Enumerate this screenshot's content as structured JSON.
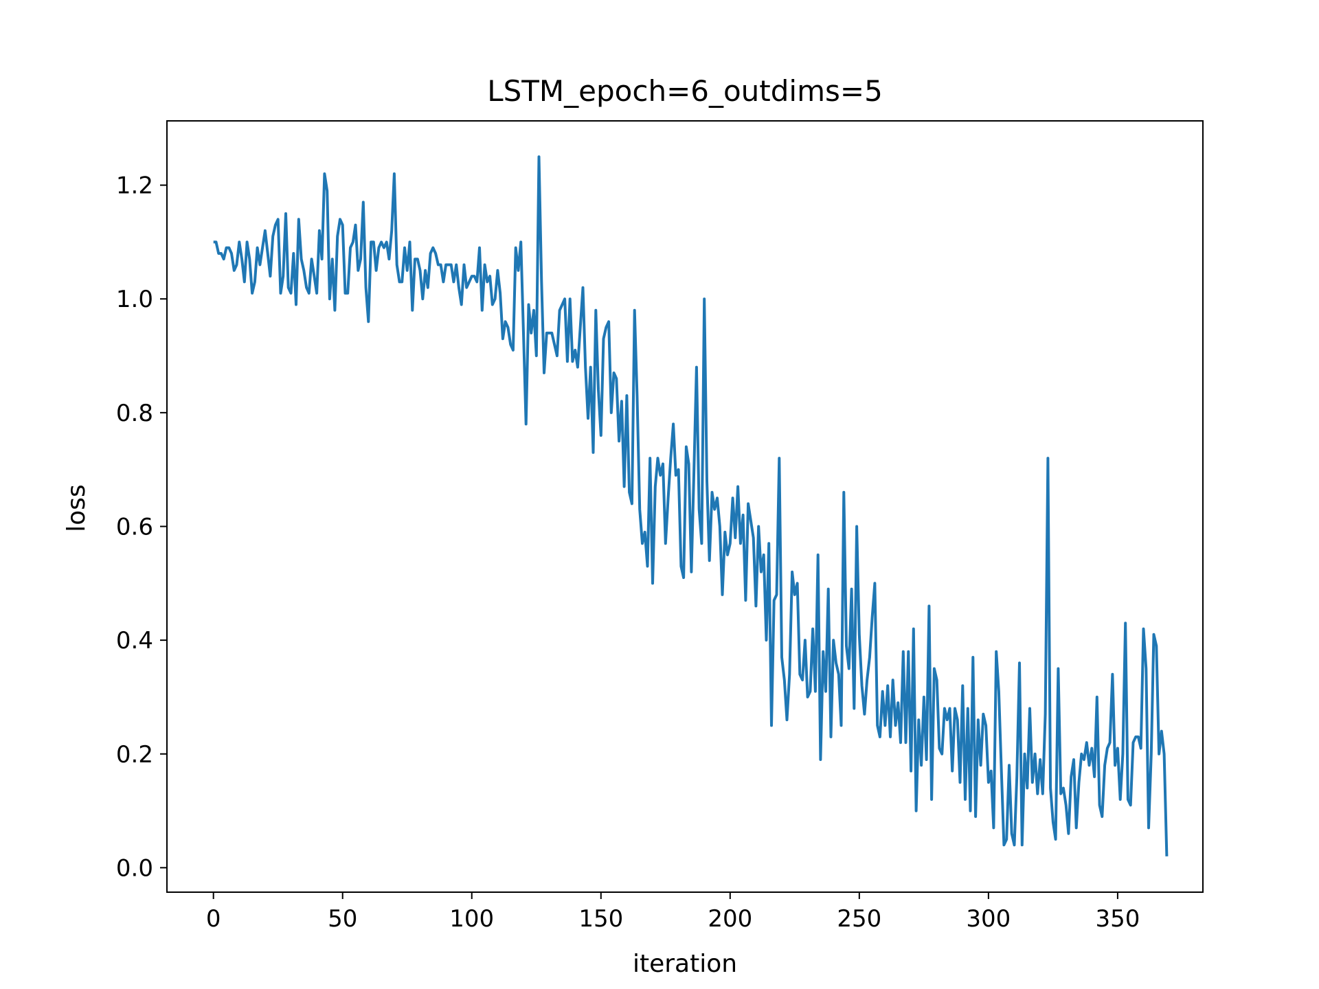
{
  "chart_data": {
    "type": "line",
    "title": "LSTM_epoch=6_outdims=5",
    "xlabel": "iteration",
    "ylabel": "loss",
    "xlim": [
      -18,
      383
    ],
    "ylim": [
      -0.043,
      1.313
    ],
    "xticks": [
      0,
      50,
      100,
      150,
      200,
      250,
      300,
      350
    ],
    "xtick_labels": [
      "0",
      "50",
      "100",
      "150",
      "200",
      "250",
      "300",
      "350"
    ],
    "yticks": [
      0.0,
      0.2,
      0.4,
      0.6,
      0.8,
      1.0,
      1.2
    ],
    "ytick_labels": [
      "0.0",
      "0.2",
      "0.4",
      "0.6",
      "0.8",
      "1.0",
      "1.2"
    ],
    "grid": false,
    "legend": "none",
    "series": [
      {
        "color": "#1f77b4",
        "x_start": 0,
        "x_step": 1,
        "values": [
          1.1,
          1.1,
          1.08,
          1.08,
          1.07,
          1.09,
          1.09,
          1.08,
          1.05,
          1.06,
          1.1,
          1.07,
          1.03,
          1.1,
          1.07,
          1.01,
          1.03,
          1.09,
          1.06,
          1.09,
          1.12,
          1.08,
          1.04,
          1.11,
          1.13,
          1.14,
          1.01,
          1.04,
          1.15,
          1.02,
          1.01,
          1.08,
          0.99,
          1.14,
          1.07,
          1.05,
          1.02,
          1.01,
          1.07,
          1.04,
          1.01,
          1.12,
          1.07,
          1.22,
          1.19,
          1.0,
          1.07,
          0.98,
          1.11,
          1.14,
          1.13,
          1.01,
          1.01,
          1.09,
          1.1,
          1.13,
          1.05,
          1.07,
          1.17,
          1.02,
          0.96,
          1.1,
          1.1,
          1.05,
          1.09,
          1.1,
          1.09,
          1.1,
          1.07,
          1.12,
          1.22,
          1.06,
          1.03,
          1.03,
          1.09,
          1.05,
          1.1,
          0.98,
          1.07,
          1.07,
          1.05,
          1.0,
          1.05,
          1.02,
          1.08,
          1.09,
          1.08,
          1.06,
          1.06,
          1.03,
          1.06,
          1.06,
          1.06,
          1.03,
          1.06,
          1.02,
          0.99,
          1.06,
          1.02,
          1.03,
          1.04,
          1.04,
          1.03,
          1.09,
          0.98,
          1.06,
          1.03,
          1.04,
          0.99,
          1.0,
          1.05,
          1.01,
          0.93,
          0.96,
          0.95,
          0.92,
          0.91,
          1.09,
          1.05,
          1.1,
          0.94,
          0.78,
          0.99,
          0.94,
          0.98,
          0.9,
          1.25,
          1.03,
          0.87,
          0.94,
          0.94,
          0.94,
          0.92,
          0.9,
          0.98,
          0.99,
          1.0,
          0.89,
          1.0,
          0.89,
          0.91,
          0.88,
          0.95,
          1.02,
          0.88,
          0.79,
          0.88,
          0.73,
          0.98,
          0.84,
          0.76,
          0.93,
          0.95,
          0.96,
          0.8,
          0.87,
          0.86,
          0.75,
          0.82,
          0.67,
          0.83,
          0.66,
          0.64,
          0.98,
          0.83,
          0.63,
          0.57,
          0.59,
          0.53,
          0.72,
          0.5,
          0.67,
          0.72,
          0.69,
          0.71,
          0.57,
          0.65,
          0.72,
          0.78,
          0.69,
          0.7,
          0.53,
          0.51,
          0.74,
          0.71,
          0.52,
          0.7,
          0.88,
          0.63,
          0.57,
          1.0,
          0.68,
          0.54,
          0.66,
          0.63,
          0.65,
          0.6,
          0.48,
          0.59,
          0.55,
          0.57,
          0.65,
          0.58,
          0.67,
          0.57,
          0.62,
          0.47,
          0.64,
          0.61,
          0.58,
          0.46,
          0.6,
          0.52,
          0.55,
          0.4,
          0.57,
          0.25,
          0.47,
          0.48,
          0.72,
          0.37,
          0.33,
          0.26,
          0.34,
          0.52,
          0.48,
          0.5,
          0.34,
          0.33,
          0.4,
          0.3,
          0.31,
          0.42,
          0.31,
          0.55,
          0.19,
          0.38,
          0.31,
          0.49,
          0.23,
          0.4,
          0.36,
          0.34,
          0.25,
          0.66,
          0.39,
          0.35,
          0.49,
          0.28,
          0.6,
          0.41,
          0.32,
          0.27,
          0.33,
          0.37,
          0.44,
          0.5,
          0.25,
          0.23,
          0.31,
          0.25,
          0.32,
          0.23,
          0.33,
          0.25,
          0.29,
          0.22,
          0.38,
          0.22,
          0.38,
          0.17,
          0.42,
          0.1,
          0.26,
          0.18,
          0.3,
          0.19,
          0.46,
          0.12,
          0.35,
          0.33,
          0.21,
          0.2,
          0.28,
          0.26,
          0.28,
          0.17,
          0.28,
          0.26,
          0.15,
          0.32,
          0.12,
          0.28,
          0.1,
          0.37,
          0.09,
          0.26,
          0.18,
          0.27,
          0.25,
          0.15,
          0.17,
          0.07,
          0.38,
          0.31,
          0.17,
          0.04,
          0.05,
          0.18,
          0.06,
          0.04,
          0.16,
          0.36,
          0.04,
          0.2,
          0.14,
          0.28,
          0.15,
          0.2,
          0.13,
          0.19,
          0.13,
          0.27,
          0.72,
          0.14,
          0.08,
          0.05,
          0.35,
          0.13,
          0.14,
          0.11,
          0.06,
          0.16,
          0.19,
          0.07,
          0.15,
          0.2,
          0.19,
          0.22,
          0.18,
          0.21,
          0.16,
          0.3,
          0.11,
          0.09,
          0.18,
          0.21,
          0.22,
          0.34,
          0.18,
          0.21,
          0.12,
          0.2,
          0.43,
          0.12,
          0.11,
          0.22,
          0.23,
          0.23,
          0.21,
          0.42,
          0.35,
          0.07,
          0.2,
          0.41,
          0.39,
          0.2,
          0.24,
          0.2,
          0.02
        ]
      }
    ]
  }
}
